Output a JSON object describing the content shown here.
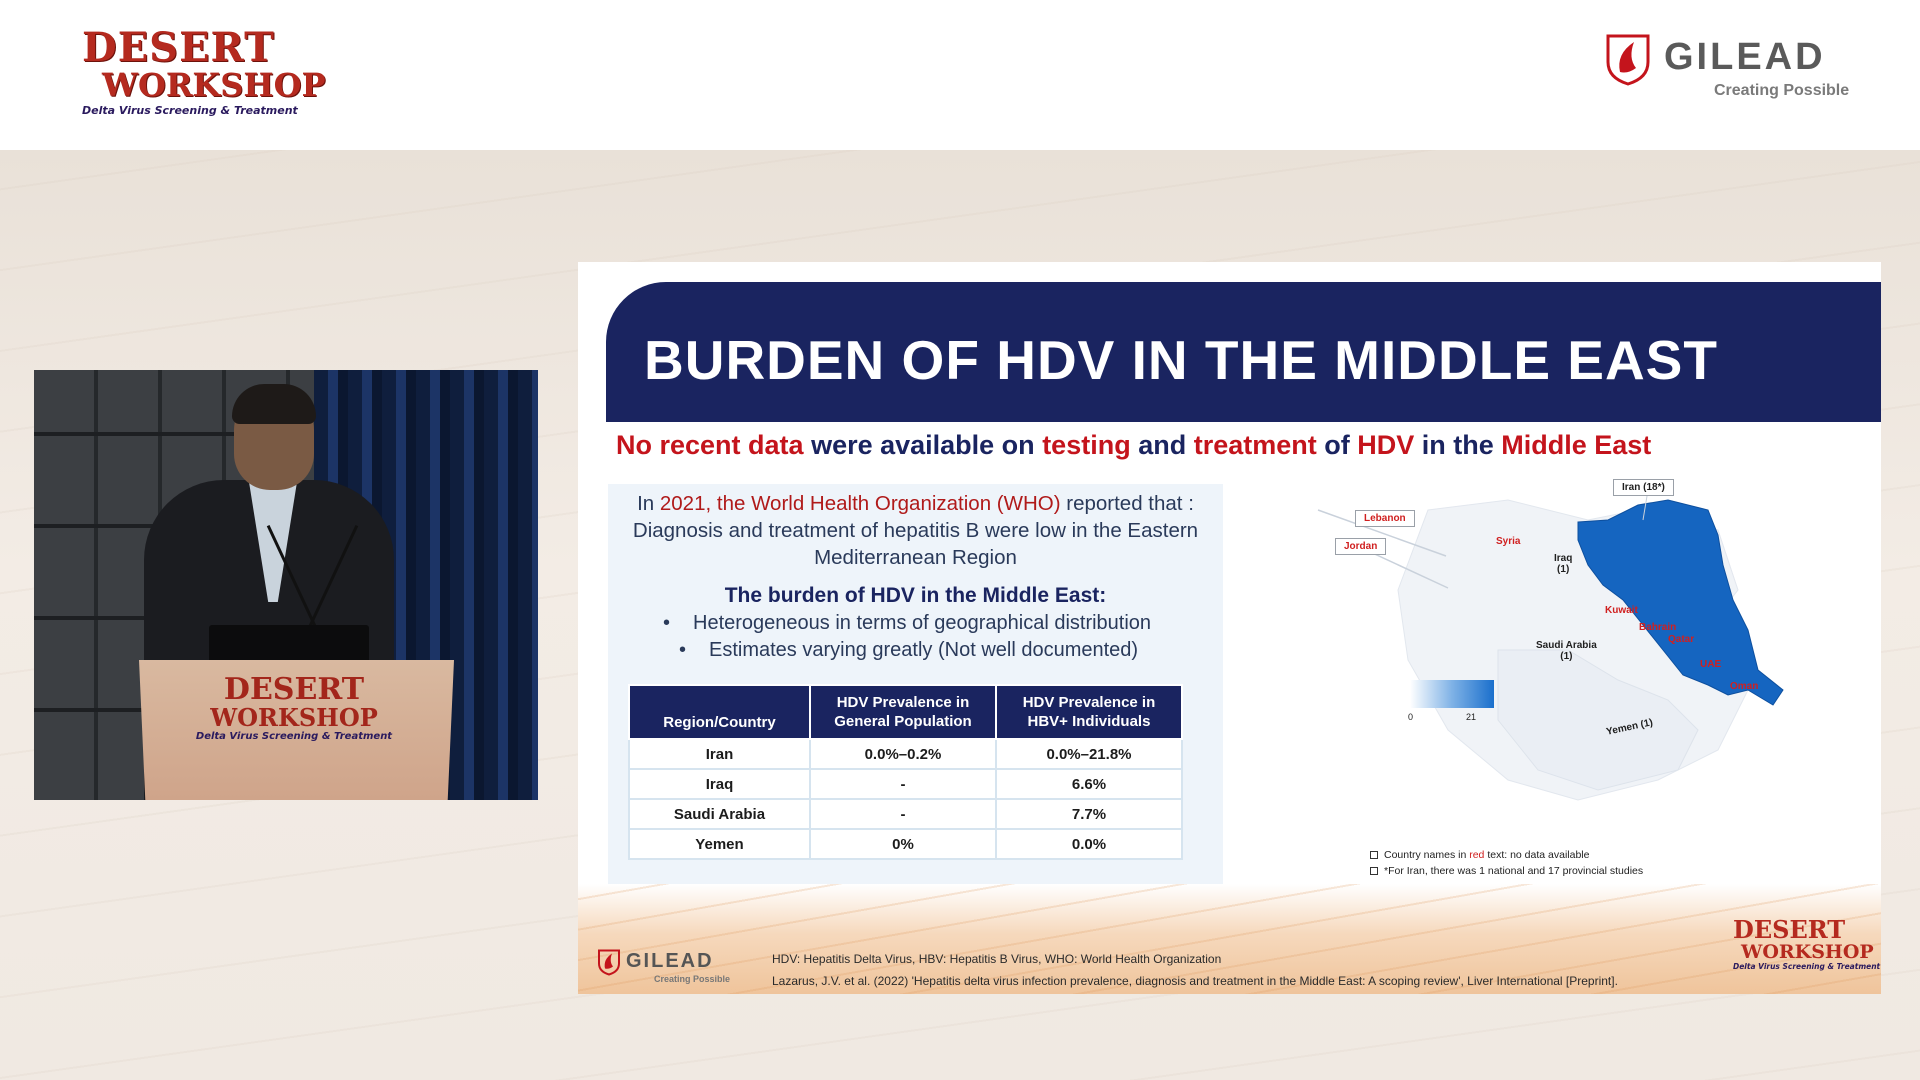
{
  "header": {
    "event_logo_line1": "DESERT",
    "event_logo_line2": "WORKSHOP",
    "event_tagline": "Delta Virus Screening & Treatment",
    "sponsor_name": "GILEAD",
    "sponsor_tagline": "Creating Possible",
    "colors": {
      "event_red": "#b52a1f",
      "sponsor_red": "#c4141c",
      "navy": "#1a2460"
    }
  },
  "speaker_video": {
    "podium_logo_line1": "DESERT",
    "podium_logo_line2": "WORKSHOP",
    "podium_tagline": "Delta Virus Screening & Treatment"
  },
  "slide": {
    "title": "BURDEN OF HDV IN THE MIDDLE EAST",
    "subtitle_parts": [
      {
        "text": "No recent data",
        "red": true
      },
      {
        "text": " were available on ",
        "red": false
      },
      {
        "text": "testing",
        "red": true
      },
      {
        "text": " and ",
        "red": false
      },
      {
        "text": "treatment",
        "red": true
      },
      {
        "text": " of ",
        "red": false
      },
      {
        "text": "HDV",
        "red": true
      },
      {
        "text": " in the ",
        "red": false
      },
      {
        "text": "Middle East",
        "red": true
      }
    ],
    "who": {
      "line1_pre": "In ",
      "year": "2021",
      "line1_mid": ", the World Health Organization (WHO)",
      "line1_post": " reported that :",
      "line2": "Diagnosis and treatment of hepatitis B were low in the Eastern",
      "line3": "Mediterranean Region"
    },
    "burden_title": "The burden of HDV in the Middle East:",
    "burden_points": [
      "Heterogeneous in terms of geographical distribution",
      "Estimates varying greatly (Not well documented)"
    ],
    "table": {
      "headers": [
        "Region/Country",
        "HDV Prevalence in General Population",
        "HDV Prevalence in HBV+ Individuals"
      ],
      "header_lines": [
        [
          "Region/Country"
        ],
        [
          "HDV Prevalence in",
          "General Population"
        ],
        [
          "HDV Prevalence in",
          "HBV+ Individuals"
        ]
      ],
      "rows": [
        [
          "Iran",
          "0.0%–0.2%",
          "0.0%–21.8%"
        ],
        [
          "Iraq",
          "-",
          "6.6%"
        ],
        [
          "Saudi Arabia",
          "-",
          "7.7%"
        ],
        [
          "Yemen",
          "0%",
          "0.0%"
        ]
      ]
    },
    "map": {
      "boxed_labels": [
        "Iran (18*)",
        "Lebanon",
        "Jordan"
      ],
      "red_labels": [
        "Syria",
        "Kuwait",
        "Bahrain",
        "Qatar",
        "UAE",
        "Oman"
      ],
      "dark_labels": [
        {
          "line1": "Iraq",
          "line2": "(1)"
        },
        {
          "line1": "Saudi Arabia",
          "line2": "(1)"
        },
        {
          "line1": "Yemen (1)",
          "line2": ""
        }
      ],
      "legend_min": "0",
      "legend_max": "21",
      "highlight_color": "#1565c0"
    },
    "notes": {
      "note1_pre": "Country names in ",
      "note1_red": "red",
      "note1_post": " text: no data available",
      "note2": "*For Iran, there was 1 national and 17 provincial studies"
    },
    "footer": {
      "logo_name": "GILEAD",
      "logo_tagline": "Creating Possible",
      "ref1": "HDV: Hepatitis Delta Virus, HBV: Hepatitis B Virus, WHO: World Health Organization",
      "ref2": "Lazarus, J.V. et al. (2022) 'Hepatitis delta virus infection prevalence, diagnosis and treatment in the Middle East: A scoping review', Liver International [Preprint].",
      "brand_line1": "DESERT",
      "brand_line2": "WORKSHOP",
      "brand_tagline": "Delta Virus Screening & Treatment"
    }
  }
}
